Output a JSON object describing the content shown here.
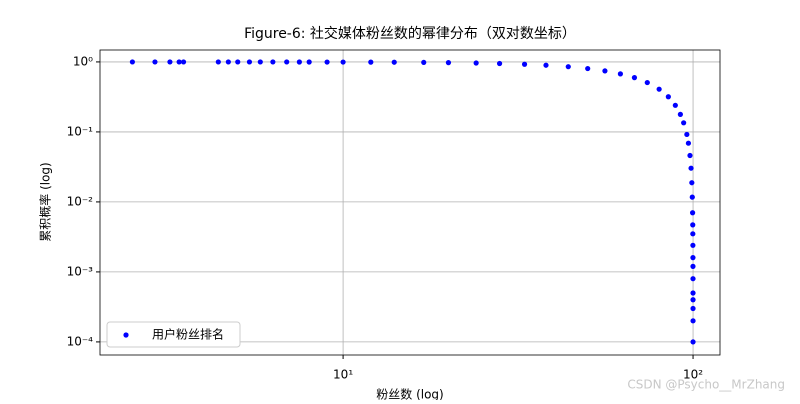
{
  "chart_data": {
    "type": "scatter",
    "title": "Figure-6: 社交媒体粉丝数的幂律分布（双对数坐标）",
    "x_label": "粉丝数 (log)",
    "y_label": "累积概率 (log)",
    "x_scale": "log",
    "y_scale": "log",
    "grid": true,
    "legend_position": "lower left",
    "watermark": "CSDN @Psycho__MrZhang",
    "xlim": [
      2.02,
      119.4
    ],
    "ylim": [
      6.5e-05,
      1.48
    ],
    "xticks": [
      {
        "value": 10,
        "label": "10¹"
      },
      {
        "value": 100,
        "label": "10²"
      }
    ],
    "yticks": [
      {
        "value": 0.0001,
        "label": "10⁻⁴"
      },
      {
        "value": 0.001,
        "label": "10⁻³"
      },
      {
        "value": 0.01,
        "label": "10⁻²"
      },
      {
        "value": 0.1,
        "label": "10⁻¹"
      },
      {
        "value": 1,
        "label": "10⁰"
      }
    ],
    "series": [
      {
        "name": "用户粉丝排名",
        "color": "#0000ff",
        "x": [
          2.5,
          2.9,
          3.2,
          3.4,
          3.5,
          4.4,
          4.7,
          5.0,
          5.4,
          5.8,
          6.3,
          6.9,
          7.5,
          8,
          9,
          10,
          12,
          14,
          17,
          20,
          24,
          28,
          33,
          38,
          44,
          50,
          56,
          62,
          68,
          74,
          80,
          85,
          89,
          92,
          94,
          96,
          97,
          98,
          98.7,
          99.2,
          99.5,
          99.7,
          99.8,
          99.85,
          99.9,
          99.93,
          99.95,
          99.97,
          99.98,
          99.99,
          99.99,
          100,
          100
        ],
        "values": [
          1.0,
          1.0,
          1.0,
          1.0,
          1.0,
          1.0,
          1.0,
          1.0,
          1.0,
          1.0,
          1.0,
          1.0,
          0.998,
          0.997,
          0.996,
          0.996,
          0.993,
          0.99,
          0.984,
          0.977,
          0.965,
          0.95,
          0.926,
          0.897,
          0.855,
          0.804,
          0.744,
          0.675,
          0.596,
          0.507,
          0.408,
          0.318,
          0.24,
          0.178,
          0.135,
          0.092,
          0.069,
          0.046,
          0.0303,
          0.0188,
          0.0117,
          0.007,
          0.0047,
          0.0035,
          0.0024,
          0.0016,
          0.0012,
          0.0008,
          0.0005,
          0.0004,
          0.0003,
          0.0002,
          0.0001
        ]
      }
    ]
  }
}
